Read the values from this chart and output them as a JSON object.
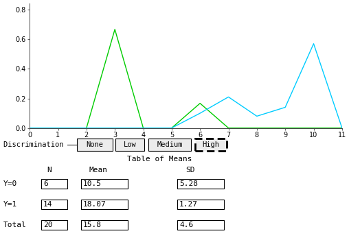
{
  "green_x": [
    0,
    2,
    3,
    4,
    5,
    6,
    7,
    11
  ],
  "green_y": [
    0.0,
    0.0,
    0.667,
    0.0,
    0.0,
    0.167,
    0.0,
    0.0
  ],
  "cyan_x": [
    0,
    5,
    6,
    7,
    8,
    9,
    10,
    11
  ],
  "cyan_y": [
    0.0,
    0.0,
    0.1,
    0.21,
    0.08,
    0.14,
    0.57,
    0.0
  ],
  "green_color": "#00cc00",
  "cyan_color": "#00ccff",
  "xlim": [
    0,
    11
  ],
  "ylim": [
    0.0,
    0.84
  ],
  "xticks": [
    0,
    1,
    2,
    3,
    4,
    5,
    6,
    7,
    8,
    9,
    10,
    11
  ],
  "yticks": [
    0.0,
    0.2,
    0.4,
    0.6,
    0.8
  ],
  "bg_color": "#ffffff",
  "discrimination_label": "Discrimination -",
  "buttons": [
    "None",
    "Low",
    "Medium",
    "High"
  ],
  "active_button": "High",
  "table_title": "Table of Means",
  "col_headers": [
    "N",
    "Mean",
    "SD"
  ],
  "row_labels": [
    "Y=0",
    "Y=1",
    "Total"
  ],
  "table_data": [
    [
      "6",
      "10.5",
      "5.28"
    ],
    [
      "14",
      "18.07",
      "1.27"
    ],
    [
      "20",
      "15.8",
      "4.6"
    ]
  ]
}
